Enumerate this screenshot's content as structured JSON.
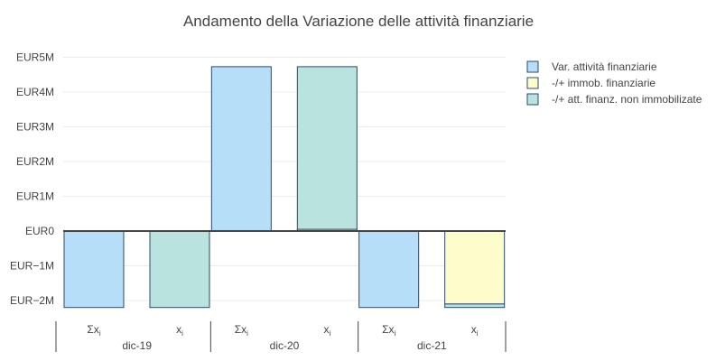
{
  "chart_data": {
    "type": "bar",
    "title": "Andamento della Variazione delle attività finanziarie",
    "yaxis": {
      "range": [
        -2.2,
        5.5
      ],
      "tick_values": [
        5,
        4,
        3,
        2,
        1,
        0,
        -1,
        -2
      ],
      "tick_labels": [
        "EUR5M",
        "EUR4M",
        "EUR3M",
        "EUR2M",
        "EUR1M",
        "EUR0",
        "EUR−1M",
        "EUR−2M"
      ],
      "grid": true
    },
    "groups": [
      {
        "label": "dic-19",
        "bars": [
          {
            "label": "Σx",
            "sub": "i",
            "segments": [
              {
                "series": 0,
                "value": -2.2
              }
            ]
          },
          {
            "label": "x",
            "sub": "i",
            "segments": [
              {
                "series": 2,
                "value": -2.2
              }
            ]
          }
        ]
      },
      {
        "label": "dic-20",
        "bars": [
          {
            "label": "Σx",
            "sub": "i",
            "segments": [
              {
                "series": 0,
                "value": 4.73
              }
            ]
          },
          {
            "label": "x",
            "sub": "i",
            "segments": [
              {
                "series": 1,
                "value": 0.05
              },
              {
                "series": 2,
                "value": 4.68
              }
            ]
          }
        ]
      },
      {
        "label": "dic-21",
        "bars": [
          {
            "label": "Σx",
            "sub": "i",
            "segments": [
              {
                "series": 0,
                "value": -2.2
              }
            ]
          },
          {
            "label": "x",
            "sub": "i",
            "segments": [
              {
                "series": 1,
                "value": -2.1
              },
              {
                "series": 2,
                "value": -0.1
              }
            ]
          }
        ]
      }
    ],
    "series": [
      {
        "name": "Var. attività finanziarie",
        "color": "#b7def9"
      },
      {
        "name": "-/+ immob. finanziarie",
        "color": "#fdfdcc"
      },
      {
        "name": "-/+ att. finanz. non immobilizate",
        "color": "#b8e3df"
      }
    ],
    "bar_border_color": "#2e4a6e",
    "legend_position": "top-right"
  }
}
